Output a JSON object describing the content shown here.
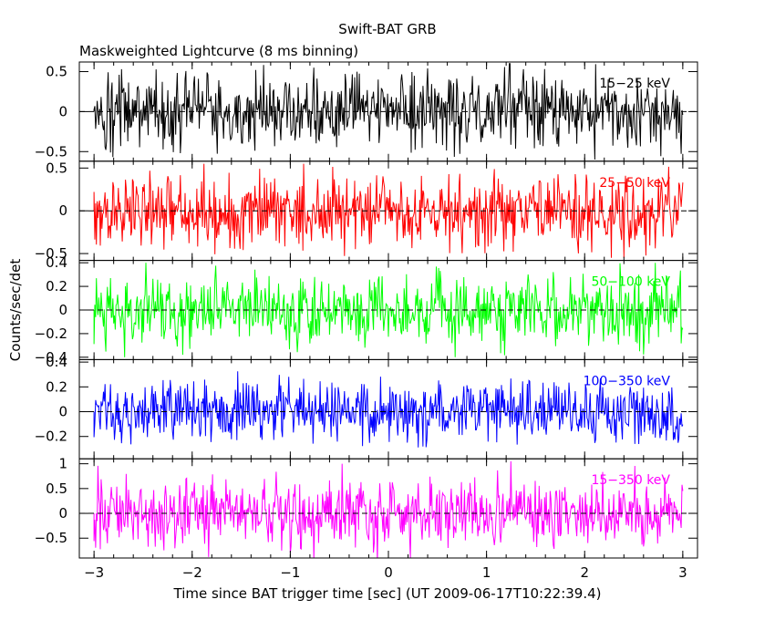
{
  "chart_data": {
    "type": "line",
    "title": "Swift-BAT GRB",
    "subtitle": "Maskweighted Lightcurve (8 ms binning)",
    "xlabel": "Time since BAT trigger time [sec] (UT 2009-06-17T10:22:39.4)",
    "ylabel": "Counts/sec/det",
    "xlim": [
      -3.15,
      3.15
    ],
    "x_ticks": [
      -3,
      -2,
      -1,
      0,
      1,
      2,
      3
    ],
    "x_tick_labels": [
      "−3",
      "−2",
      "−1",
      "0",
      "1",
      "2",
      "3"
    ],
    "x_range": [
      -3,
      3
    ],
    "bin_width_sec": 0.008,
    "grid": false,
    "zero_line": "dashed",
    "panels": [
      {
        "name": "15-25 keV",
        "label": "15−25 keV",
        "color": "#000000",
        "ylim": [
          -0.62,
          0.62
        ],
        "y_ticks": [
          -0.5,
          0,
          0.5
        ],
        "y_tick_labels": [
          "−0.5",
          "0",
          "0.5"
        ],
        "noise_amplitude": 0.23,
        "peak_amplitude": 0.6,
        "mean": 0.0
      },
      {
        "name": "25-50 keV",
        "label": "25−50 keV",
        "color": "#ff0000",
        "ylim": [
          -0.58,
          0.58
        ],
        "y_ticks": [
          -0.5,
          0,
          0.5
        ],
        "y_tick_labels": [
          "−0.5",
          "0",
          "0.5"
        ],
        "noise_amplitude": 0.21,
        "peak_amplitude": 0.55,
        "mean": 0.0
      },
      {
        "name": "50-100 keV",
        "label": "50−100 keV",
        "color": "#00ff00",
        "ylim": [
          -0.42,
          0.42
        ],
        "y_ticks": [
          -0.4,
          -0.2,
          0,
          0.2,
          0.4
        ],
        "y_tick_labels": [
          "−0.4",
          "−0.2",
          "0",
          "0.2",
          "0.4"
        ],
        "noise_amplitude": 0.15,
        "peak_amplitude": 0.4,
        "mean": 0.0
      },
      {
        "name": "100-350 keV",
        "label": "100−350 keV",
        "color": "#0000ff",
        "ylim": [
          -0.38,
          0.42
        ],
        "y_ticks": [
          -0.2,
          0,
          0.2,
          0.4
        ],
        "y_tick_labels": [
          "−0.2",
          "0",
          "0.2",
          "0.4"
        ],
        "noise_amplitude": 0.12,
        "peak_amplitude": 0.38,
        "mean": 0.0
      },
      {
        "name": "15-350 keV",
        "label": "15−350 keV",
        "color": "#ff00ff",
        "ylim": [
          -0.9,
          1.1
        ],
        "y_ticks": [
          -0.5,
          0,
          0.5,
          1
        ],
        "y_tick_labels": [
          "−0.5",
          "0",
          "0.5",
          "1"
        ],
        "noise_amplitude": 0.35,
        "peak_amplitude": 1.05,
        "mean": 0.0
      }
    ]
  }
}
